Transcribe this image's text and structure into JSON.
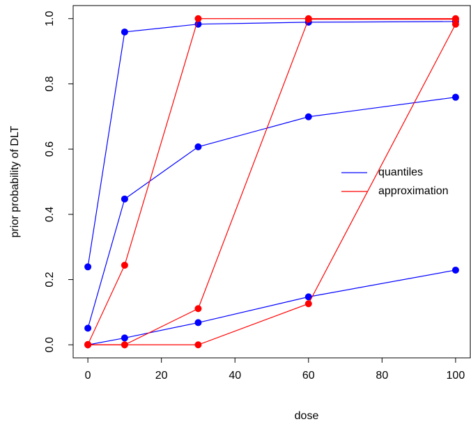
{
  "chart_data": {
    "type": "line",
    "x_label": "dose",
    "y_label": "prior probability of DLT",
    "x": [
      0,
      10,
      30,
      60,
      100
    ],
    "series": [
      {
        "name": "quantiles",
        "color": "#0000ff",
        "values": [
          0.239,
          0.959,
          0.983,
          0.989,
          0.991
        ]
      },
      {
        "name": "quantiles",
        "color": "#0000ff",
        "values": [
          0.051,
          0.447,
          0.607,
          0.699,
          0.759
        ]
      },
      {
        "name": "quantiles",
        "color": "#0000ff",
        "values": [
          0.0,
          0.021,
          0.068,
          0.147,
          0.229
        ]
      },
      {
        "name": "approximation",
        "color": "#ff0000",
        "values": [
          0.001,
          0.244,
          1.0,
          1.0,
          1.0
        ]
      },
      {
        "name": "approximation",
        "color": "#ff0000",
        "values": [
          0.0,
          0.0,
          0.111,
          0.998,
          0.998
        ]
      },
      {
        "name": "approximation",
        "color": "#ff0000",
        "values": [
          0.0,
          0.0,
          0.0,
          0.126,
          0.983
        ]
      }
    ],
    "xlim": [
      -4,
      104
    ],
    "ylim": [
      -0.04,
      1.04
    ],
    "xticks": [
      0,
      20,
      40,
      60,
      80,
      100
    ],
    "yticks": [
      {
        "value": 0,
        "label": "0.0"
      },
      {
        "value": 0.2,
        "label": "0.2"
      },
      {
        "value": 0.4,
        "label": "0.4"
      },
      {
        "value": 0.6,
        "label": "0.6"
      },
      {
        "value": 0.8,
        "label": "0.8"
      },
      {
        "value": 1,
        "label": "1.0"
      }
    ],
    "grid": false,
    "legend": "right"
  }
}
